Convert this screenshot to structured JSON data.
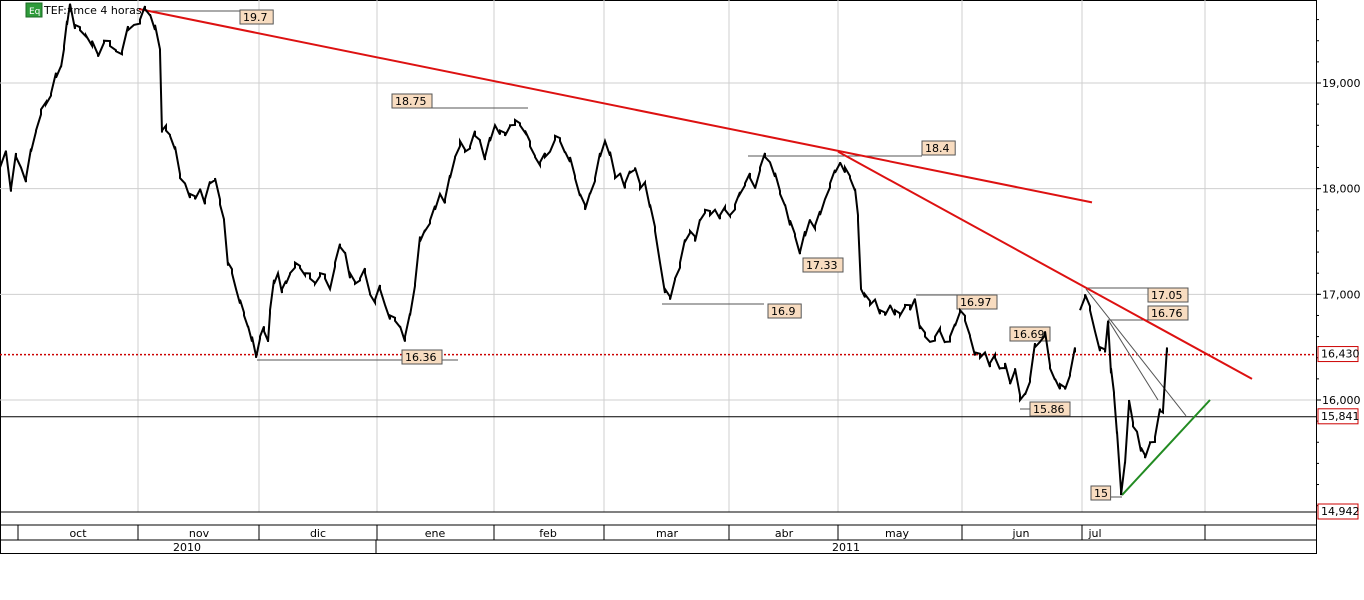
{
  "chart_data": {
    "type": "candlestick-line",
    "title": "TEF:xmce 4 horas",
    "title_badge": "Eq",
    "ylim": [
      14.9,
      20.0
    ],
    "y_ticks": [
      "19,000",
      "18,000",
      "17,000",
      "16,000"
    ],
    "months": [
      "oct",
      "nov",
      "dic",
      "ene",
      "feb",
      "mar",
      "abr",
      "may",
      "jun",
      "jul"
    ],
    "years": [
      "2010",
      "2011"
    ],
    "price_markers": [
      {
        "label": "16,430",
        "value": 16.43,
        "color": "#cc0000",
        "line": "dotted-red"
      },
      {
        "label": "15,841",
        "value": 15.841,
        "color": "#cc0000",
        "line": "solid-black"
      },
      {
        "label": "14,942",
        "value": 14.942,
        "color": "#cc0000",
        "line": "solid-black"
      }
    ],
    "annotations": [
      "19.7",
      "18.75",
      "18.4",
      "17.33",
      "16.9",
      "16.97",
      "16.36",
      "16.69",
      "15.86",
      "17.05",
      "16.76",
      "15"
    ],
    "series": [
      {
        "color": "#000000",
        "points": [
          [
            0,
            18.2
          ],
          [
            6,
            18.35
          ],
          [
            11,
            18.0
          ],
          [
            16,
            18.3
          ],
          [
            21,
            18.2
          ],
          [
            26,
            18.1
          ],
          [
            31,
            18.35
          ],
          [
            36,
            18.55
          ],
          [
            41,
            18.75
          ],
          [
            46,
            18.8
          ],
          [
            51,
            18.9
          ],
          [
            56,
            19.05
          ],
          [
            61,
            19.15
          ],
          [
            64,
            19.35
          ],
          [
            67,
            19.55
          ],
          [
            70,
            19.75
          ],
          [
            75,
            19.55
          ],
          [
            80,
            19.5
          ],
          [
            86,
            19.45
          ],
          [
            92,
            19.4
          ],
          [
            98,
            19.25
          ],
          [
            104,
            19.4
          ],
          [
            110,
            19.35
          ],
          [
            116,
            19.3
          ],
          [
            122,
            19.3
          ],
          [
            128,
            19.5
          ],
          [
            134,
            19.55
          ],
          [
            140,
            19.6
          ],
          [
            145,
            19.7
          ],
          [
            150,
            19.65
          ],
          [
            155,
            19.55
          ],
          [
            160,
            19.3
          ],
          [
            162,
            18.55
          ],
          [
            166,
            18.55
          ],
          [
            170,
            18.5
          ],
          [
            175,
            18.4
          ],
          [
            180,
            18.1
          ],
          [
            185,
            18.05
          ],
          [
            190,
            17.95
          ],
          [
            195,
            17.9
          ],
          [
            200,
            18.0
          ],
          [
            205,
            17.9
          ],
          [
            210,
            18.05
          ],
          [
            215,
            18.1
          ],
          [
            220,
            17.85
          ],
          [
            224,
            17.7
          ],
          [
            228,
            17.3
          ],
          [
            232,
            17.2
          ],
          [
            236,
            17.05
          ],
          [
            240,
            16.95
          ],
          [
            244,
            16.8
          ],
          [
            248,
            16.7
          ],
          [
            252,
            16.6
          ],
          [
            256,
            16.4
          ],
          [
            260,
            16.6
          ],
          [
            264,
            16.65
          ],
          [
            268,
            16.55
          ],
          [
            270,
            16.85
          ],
          [
            274,
            17.1
          ],
          [
            278,
            17.2
          ],
          [
            282,
            17.05
          ],
          [
            286,
            17.1
          ],
          [
            290,
            17.2
          ],
          [
            295,
            17.3
          ],
          [
            300,
            17.25
          ],
          [
            305,
            17.2
          ],
          [
            310,
            17.15
          ],
          [
            315,
            17.1
          ],
          [
            320,
            17.2
          ],
          [
            325,
            17.15
          ],
          [
            330,
            17.05
          ],
          [
            335,
            17.3
          ],
          [
            340,
            17.45
          ],
          [
            345,
            17.4
          ],
          [
            350,
            17.2
          ],
          [
            355,
            17.1
          ],
          [
            360,
            17.15
          ],
          [
            365,
            17.2
          ],
          [
            370,
            17.0
          ],
          [
            375,
            16.95
          ],
          [
            380,
            17.05
          ],
          [
            385,
            16.9
          ],
          [
            390,
            16.8
          ],
          [
            395,
            16.75
          ],
          [
            400,
            16.7
          ],
          [
            405,
            16.6
          ],
          [
            410,
            16.8
          ],
          [
            415,
            17.1
          ],
          [
            420,
            17.5
          ],
          [
            425,
            17.6
          ],
          [
            430,
            17.7
          ],
          [
            435,
            17.8
          ],
          [
            440,
            17.95
          ],
          [
            445,
            17.9
          ],
          [
            450,
            18.1
          ],
          [
            455,
            18.3
          ],
          [
            460,
            18.45
          ],
          [
            465,
            18.35
          ],
          [
            470,
            18.4
          ],
          [
            475,
            18.5
          ],
          [
            480,
            18.45
          ],
          [
            485,
            18.3
          ],
          [
            490,
            18.45
          ],
          [
            495,
            18.6
          ],
          [
            500,
            18.55
          ],
          [
            505,
            18.5
          ],
          [
            510,
            18.6
          ],
          [
            515,
            18.65
          ],
          [
            520,
            18.6
          ],
          [
            525,
            18.55
          ],
          [
            530,
            18.4
          ],
          [
            535,
            18.3
          ],
          [
            540,
            18.25
          ],
          [
            545,
            18.3
          ],
          [
            550,
            18.35
          ],
          [
            555,
            18.5
          ],
          [
            560,
            18.45
          ],
          [
            565,
            18.35
          ],
          [
            570,
            18.3
          ],
          [
            575,
            18.1
          ],
          [
            580,
            17.95
          ],
          [
            585,
            17.8
          ],
          [
            590,
            17.95
          ],
          [
            595,
            18.1
          ],
          [
            600,
            18.3
          ],
          [
            605,
            18.45
          ],
          [
            610,
            18.35
          ],
          [
            615,
            18.1
          ],
          [
            620,
            18.15
          ],
          [
            625,
            18.05
          ],
          [
            630,
            18.15
          ],
          [
            635,
            18.2
          ],
          [
            640,
            18.0
          ],
          [
            645,
            18.05
          ],
          [
            650,
            17.85
          ],
          [
            655,
            17.6
          ],
          [
            660,
            17.3
          ],
          [
            665,
            17.05
          ],
          [
            670,
            16.95
          ],
          [
            675,
            17.15
          ],
          [
            680,
            17.3
          ],
          [
            685,
            17.5
          ],
          [
            690,
            17.6
          ],
          [
            695,
            17.5
          ],
          [
            700,
            17.7
          ],
          [
            705,
            17.8
          ],
          [
            710,
            17.75
          ],
          [
            715,
            17.8
          ],
          [
            720,
            17.75
          ],
          [
            725,
            17.8
          ],
          [
            730,
            17.75
          ],
          [
            735,
            17.85
          ],
          [
            740,
            17.95
          ],
          [
            745,
            18.05
          ],
          [
            750,
            18.1
          ],
          [
            755,
            18.0
          ],
          [
            760,
            18.2
          ],
          [
            765,
            18.3
          ],
          [
            770,
            18.25
          ],
          [
            775,
            18.15
          ],
          [
            780,
            17.95
          ],
          [
            785,
            17.85
          ],
          [
            790,
            17.7
          ],
          [
            795,
            17.55
          ],
          [
            800,
            17.4
          ],
          [
            805,
            17.55
          ],
          [
            810,
            17.7
          ],
          [
            815,
            17.65
          ],
          [
            820,
            17.75
          ],
          [
            825,
            17.9
          ],
          [
            830,
            18.05
          ],
          [
            835,
            18.15
          ],
          [
            840,
            18.25
          ],
          [
            845,
            18.2
          ],
          [
            850,
            18.1
          ],
          [
            855,
            18.0
          ],
          [
            858,
            17.7
          ],
          [
            861,
            17.05
          ],
          [
            865,
            17.0
          ],
          [
            870,
            16.9
          ],
          [
            875,
            16.95
          ],
          [
            880,
            16.85
          ],
          [
            885,
            16.8
          ],
          [
            890,
            16.9
          ],
          [
            895,
            16.85
          ],
          [
            900,
            16.8
          ],
          [
            905,
            16.9
          ],
          [
            910,
            16.85
          ],
          [
            915,
            16.95
          ],
          [
            920,
            16.7
          ],
          [
            925,
            16.6
          ],
          [
            930,
            16.55
          ],
          [
            935,
            16.6
          ],
          [
            940,
            16.65
          ],
          [
            945,
            16.55
          ],
          [
            950,
            16.6
          ],
          [
            955,
            16.7
          ],
          [
            960,
            16.85
          ],
          [
            965,
            16.75
          ],
          [
            970,
            16.6
          ],
          [
            975,
            16.45
          ],
          [
            980,
            16.4
          ],
          [
            985,
            16.45
          ],
          [
            990,
            16.35
          ],
          [
            995,
            16.4
          ],
          [
            1000,
            16.3
          ],
          [
            1005,
            16.35
          ],
          [
            1010,
            16.15
          ],
          [
            1015,
            16.3
          ],
          [
            1020,
            16.0
          ],
          [
            1025,
            16.05
          ],
          [
            1030,
            16.2
          ],
          [
            1035,
            16.5
          ],
          [
            1040,
            16.55
          ],
          [
            1045,
            16.65
          ],
          [
            1050,
            16.3
          ],
          [
            1055,
            16.2
          ],
          [
            1060,
            16.15
          ],
          [
            1065,
            16.1
          ],
          [
            1070,
            16.25
          ],
          [
            1075,
            16.45
          ],
          [
            1080,
            16.85
          ],
          [
            1085,
            17.0
          ],
          [
            1090,
            16.85
          ],
          [
            1095,
            16.65
          ],
          [
            1100,
            16.5
          ],
          [
            1105,
            16.45
          ],
          [
            1108,
            16.75
          ],
          [
            1111,
            16.3
          ],
          [
            1114,
            16.05
          ],
          [
            1117,
            15.7
          ],
          [
            1121,
            15.1
          ],
          [
            1125,
            15.4
          ],
          [
            1129,
            16.0
          ],
          [
            1133,
            15.75
          ],
          [
            1137,
            15.7
          ],
          [
            1141,
            15.55
          ],
          [
            1145,
            15.45
          ],
          [
            1150,
            15.6
          ],
          [
            1155,
            15.65
          ],
          [
            1160,
            15.9
          ],
          [
            1163,
            15.9
          ],
          [
            1167,
            16.45
          ]
        ]
      }
    ],
    "trend_lines": [
      {
        "color": "#dd1111",
        "from": [
          139,
          19.7
        ],
        "to": [
          1092,
          17.87
        ]
      },
      {
        "color": "#dd1111",
        "from": [
          838,
          18.35
        ],
        "to": [
          1252,
          16.2
        ]
      },
      {
        "color": "#228b22",
        "from": [
          1122,
          15.1
        ],
        "to": [
          1210,
          16.0
        ]
      },
      {
        "color": "#555555",
        "from": [
          1086,
          17.05
        ],
        "to": [
          1186,
          15.85
        ]
      }
    ]
  }
}
